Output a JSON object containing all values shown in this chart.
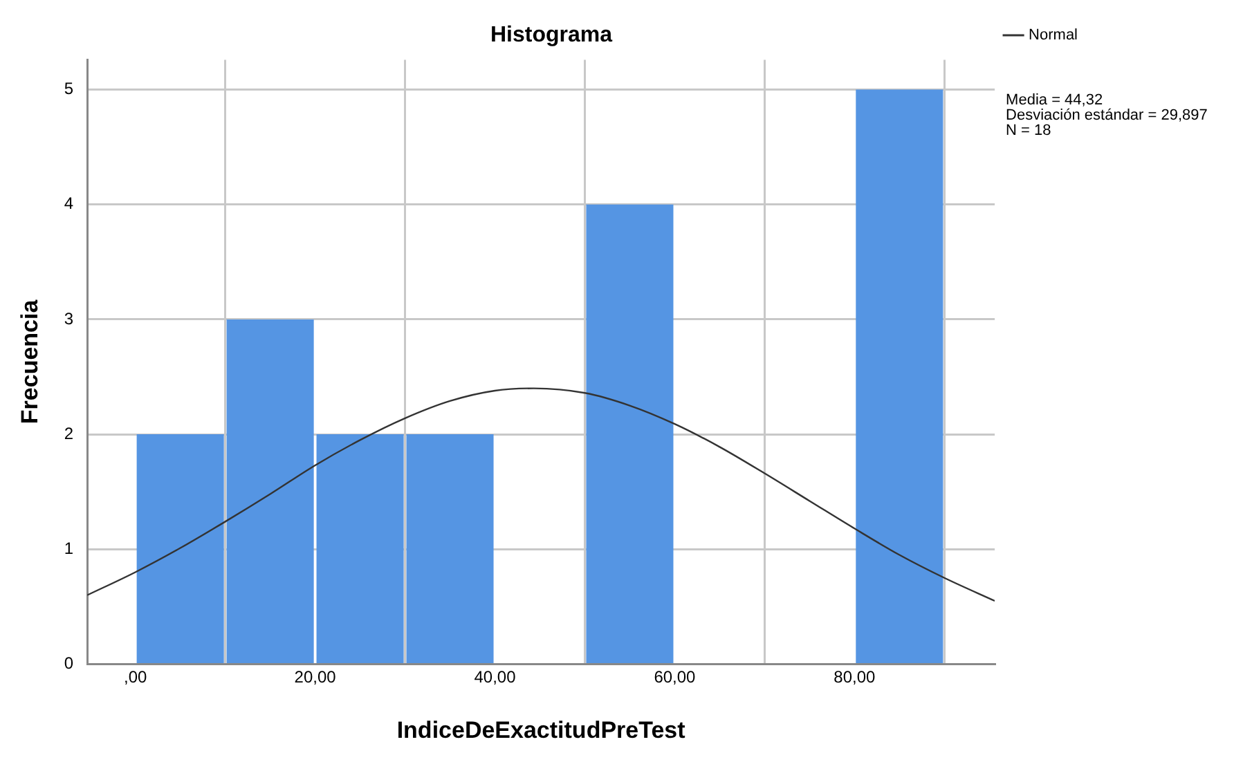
{
  "chart_data": {
    "type": "histogram",
    "title": "Histograma",
    "xlabel": "IndiceDeExactitudPreTest",
    "ylabel": "Frecuencia",
    "bins": [
      0,
      10,
      20,
      30,
      40,
      50,
      60,
      70,
      80,
      90
    ],
    "values": [
      2,
      3,
      2,
      2,
      0,
      4,
      0,
      0,
      5
    ],
    "color": "#5595e3",
    "series": [
      {
        "name": "Normal",
        "type": "line",
        "color": "#333333",
        "x": [
          -5.35,
          0,
          5,
          10,
          15,
          20,
          25,
          30,
          35,
          40,
          44.32,
          50,
          55,
          60,
          65,
          70,
          75,
          80,
          85,
          90,
          95.6
        ],
        "values": [
          0.6,
          0.8,
          1.01,
          1.24,
          1.48,
          1.73,
          1.95,
          2.14,
          2.29,
          2.38,
          2.4,
          2.36,
          2.25,
          2.09,
          1.89,
          1.66,
          1.42,
          1.18,
          0.95,
          0.75,
          0.55
        ]
      }
    ],
    "xlim": [
      -5.35,
      95.6
    ],
    "ylim": [
      0,
      5.26
    ],
    "xticks": [
      {
        "value": 0,
        "label": ",00"
      },
      {
        "value": 20,
        "label": "20,00"
      },
      {
        "value": 40,
        "label": "40,00"
      },
      {
        "value": 60,
        "label": "60,00"
      },
      {
        "value": 80,
        "label": "80,00"
      }
    ],
    "yticks": [
      0,
      1,
      2,
      3,
      4,
      5
    ],
    "grid": true,
    "legend": "top right",
    "marker": "none",
    "annotations": [
      "Media = 44,32",
      "Desviación estándar = 29,897",
      "N = 18"
    ]
  }
}
